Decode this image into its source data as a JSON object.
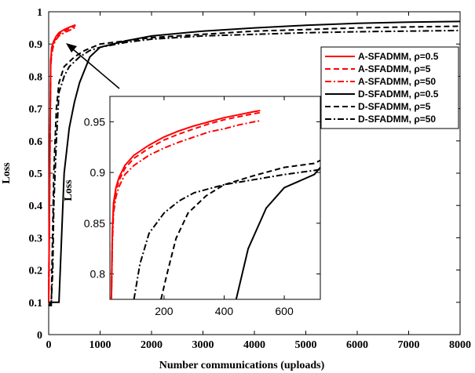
{
  "chart_data": [
    {
      "type": "line",
      "title": "",
      "xlabel": "Number communications (uploads)",
      "ylabel": "Loss",
      "xlim": [
        0,
        8000
      ],
      "ylim": [
        0,
        1
      ],
      "xticks": [
        "0",
        "1000",
        "2000",
        "3000",
        "4000",
        "5000",
        "6000",
        "7000",
        "8000"
      ],
      "yticks": [
        "0",
        "0.1",
        "0.2",
        "0.3",
        "0.4",
        "0.5",
        "0.6",
        "0.7",
        "0.8",
        "0.9",
        "1"
      ],
      "legend_position": "right",
      "series": [
        {
          "name": "A-SFADMM, ρ=0.5",
          "color": "#ff0000",
          "style": "solid",
          "x": [
            0,
            20,
            40,
            60,
            100,
            150,
            200,
            300,
            400,
            500,
            520
          ],
          "y": [
            0.1,
            0.5,
            0.85,
            0.89,
            0.91,
            0.925,
            0.935,
            0.945,
            0.952,
            0.958,
            0.96
          ]
        },
        {
          "name": "A-SFADMM, ρ=5",
          "color": "#ff0000",
          "style": "dashed",
          "x": [
            0,
            20,
            40,
            60,
            100,
            150,
            200,
            300,
            400,
            500,
            520
          ],
          "y": [
            0.1,
            0.5,
            0.84,
            0.88,
            0.905,
            0.92,
            0.93,
            0.94,
            0.948,
            0.955,
            0.957
          ]
        },
        {
          "name": "A-SFADMM, ρ=50",
          "color": "#ff0000",
          "style": "dashdot",
          "x": [
            0,
            20,
            40,
            60,
            100,
            150,
            200,
            300,
            400,
            500,
            520
          ],
          "y": [
            0.1,
            0.45,
            0.83,
            0.87,
            0.9,
            0.915,
            0.925,
            0.935,
            0.942,
            0.95,
            0.952
          ]
        },
        {
          "name": "D-SFADMM, ρ=0.5",
          "color": "#000000",
          "style": "solid",
          "x": [
            0,
            100,
            200,
            300,
            400,
            500,
            600,
            700,
            800,
            1000,
            1500,
            2000,
            3000,
            4000,
            5000,
            6000,
            7000,
            8000
          ],
          "y": [
            0.1,
            0.1,
            0.1,
            0.5,
            0.64,
            0.72,
            0.78,
            0.82,
            0.86,
            0.89,
            0.91,
            0.925,
            0.94,
            0.95,
            0.958,
            0.964,
            0.968,
            0.97
          ]
        },
        {
          "name": "D-SFADMM, ρ=5",
          "color": "#000000",
          "style": "dashed",
          "x": [
            0,
            50,
            100,
            150,
            200,
            300,
            500,
            700,
            1000,
            1500,
            2000,
            3000,
            4000,
            5000,
            6000,
            7000,
            8000
          ],
          "y": [
            0.09,
            0.09,
            0.5,
            0.7,
            0.78,
            0.83,
            0.86,
            0.88,
            0.9,
            0.91,
            0.92,
            0.93,
            0.94,
            0.945,
            0.95,
            0.953,
            0.955
          ]
        },
        {
          "name": "D-SFADMM, ρ=50",
          "color": "#000000",
          "style": "dashdot",
          "x": [
            0,
            50,
            80,
            100,
            150,
            200,
            300,
            400,
            600,
            800,
            1000,
            1500,
            2000,
            3000,
            4000,
            5000,
            6000,
            7000,
            8000
          ],
          "y": [
            0.09,
            0.1,
            0.2,
            0.4,
            0.6,
            0.75,
            0.8,
            0.83,
            0.86,
            0.88,
            0.89,
            0.905,
            0.915,
            0.925,
            0.93,
            0.935,
            0.938,
            0.94,
            0.942
          ]
        }
      ]
    },
    {
      "type": "line",
      "title": "",
      "xlabel": "",
      "ylabel": "Loss",
      "xlim": [
        20,
        720
      ],
      "ylim": [
        0.775,
        0.975
      ],
      "xticks": [
        "200",
        "400",
        "600"
      ],
      "yticks": [
        "0.8",
        "0.85",
        "0.9",
        "0.95"
      ],
      "series": [
        {
          "name": "A-SFADMM, ρ=0.5",
          "color": "#ff0000",
          "style": "solid",
          "x": [
            25,
            28,
            32,
            40,
            50,
            70,
            100,
            150,
            200,
            250,
            300,
            350,
            400,
            450,
            500,
            520
          ],
          "y": [
            0.775,
            0.84,
            0.87,
            0.885,
            0.895,
            0.907,
            0.917,
            0.927,
            0.935,
            0.941,
            0.946,
            0.95,
            0.954,
            0.957,
            0.96,
            0.961
          ]
        },
        {
          "name": "A-SFADMM, ρ=5",
          "color": "#ff0000",
          "style": "dashed",
          "x": [
            25,
            28,
            32,
            40,
            50,
            70,
            100,
            150,
            200,
            250,
            300,
            350,
            400,
            450,
            500,
            520
          ],
          "y": [
            0.775,
            0.84,
            0.867,
            0.882,
            0.892,
            0.904,
            0.914,
            0.924,
            0.932,
            0.938,
            0.943,
            0.948,
            0.952,
            0.955,
            0.958,
            0.959
          ]
        },
        {
          "name": "A-SFADMM, ρ=50",
          "color": "#ff0000",
          "style": "dashdot",
          "x": [
            25,
            28,
            32,
            40,
            50,
            70,
            100,
            150,
            200,
            250,
            300,
            350,
            400,
            450,
            500,
            520
          ],
          "y": [
            0.775,
            0.83,
            0.86,
            0.876,
            0.886,
            0.898,
            0.907,
            0.917,
            0.924,
            0.93,
            0.935,
            0.94,
            0.943,
            0.947,
            0.95,
            0.951
          ]
        },
        {
          "name": "D-SFADMM, ρ=0.5",
          "color": "#000000",
          "style": "solid",
          "x": [
            440,
            480,
            540,
            600,
            700,
            720
          ],
          "y": [
            0.775,
            0.825,
            0.865,
            0.885,
            0.898,
            0.905
          ]
        },
        {
          "name": "D-SFADMM, ρ=5",
          "color": "#000000",
          "style": "dashed",
          "x": [
            190,
            210,
            240,
            280,
            340,
            400,
            500,
            600,
            700,
            720
          ],
          "y": [
            0.775,
            0.8,
            0.835,
            0.86,
            0.877,
            0.888,
            0.897,
            0.905,
            0.909,
            0.912
          ]
        },
        {
          "name": "D-SFADMM, ρ=50",
          "color": "#000000",
          "style": "dashdot",
          "x": [
            100,
            120,
            150,
            200,
            250,
            300,
            400,
            500,
            600,
            700,
            720
          ],
          "y": [
            0.775,
            0.81,
            0.84,
            0.86,
            0.872,
            0.88,
            0.888,
            0.893,
            0.898,
            0.902,
            0.903
          ]
        }
      ]
    }
  ]
}
